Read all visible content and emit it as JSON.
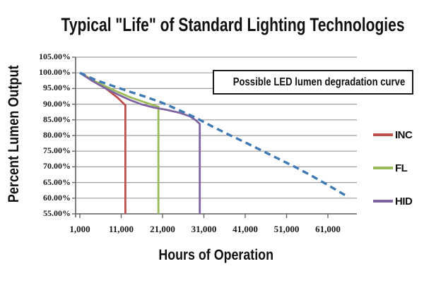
{
  "annotation": {
    "text": "Possible LED lumen degradation curve"
  },
  "legend": {
    "position": "right",
    "items": [
      {
        "label": "INC",
        "color": "#c0504d"
      },
      {
        "label": "FL",
        "color": "#9bbb59"
      },
      {
        "label": "HID",
        "color": "#8064a2"
      }
    ]
  },
  "chart_data": {
    "type": "line",
    "title": "Typical \"Life\" of Standard Lighting Technologies",
    "xlabel": "Hours of Operation",
    "ylabel": "Percent Lumen Output",
    "xlim": [
      1000,
      68000
    ],
    "ylim": [
      55,
      105
    ],
    "grid": "horizontal",
    "x_ticks": [
      1000,
      11000,
      21000,
      31000,
      41000,
      51000,
      61000
    ],
    "x_tick_labels": [
      "1,000",
      "11,000",
      "21,000",
      "31,000",
      "41,000",
      "51,000",
      "61,000"
    ],
    "y_ticks": [
      105,
      100,
      95,
      90,
      85,
      80,
      75,
      70,
      65,
      60,
      55
    ],
    "y_tick_labels": [
      "105.00%",
      "100.00%",
      "95.00%",
      "90.00%",
      "85.00%",
      "80.00%",
      "75.00%",
      "70.00%",
      "65.00%",
      "60.00%",
      "55.00%"
    ],
    "series": [
      {
        "name": "INC",
        "color": "#c0504d",
        "style": "solid",
        "points": [
          [
            1000,
            100
          ],
          [
            4000,
            97.8
          ],
          [
            7000,
            95.3
          ],
          [
            10000,
            92.2
          ],
          [
            11500,
            90.3
          ],
          [
            12000,
            89.7
          ],
          [
            12000,
            55
          ]
        ]
      },
      {
        "name": "FL",
        "color": "#9bbb59",
        "style": "solid",
        "points": [
          [
            1000,
            100
          ],
          [
            4000,
            97.7
          ],
          [
            7000,
            95.8
          ],
          [
            10000,
            94.0
          ],
          [
            13000,
            92.3
          ],
          [
            16000,
            90.9
          ],
          [
            18500,
            89.8
          ],
          [
            20000,
            89.2
          ],
          [
            20000,
            55
          ]
        ]
      },
      {
        "name": "HID",
        "color": "#8064a2",
        "style": "solid",
        "points": [
          [
            1000,
            100
          ],
          [
            4000,
            97.4
          ],
          [
            7000,
            95.2
          ],
          [
            10000,
            93.2
          ],
          [
            13000,
            91.4
          ],
          [
            16000,
            89.9
          ],
          [
            19000,
            88.9
          ],
          [
            22000,
            88.2
          ],
          [
            25000,
            87.3
          ],
          [
            27500,
            86.2
          ],
          [
            29200,
            84.7
          ],
          [
            30000,
            83.7
          ],
          [
            30000,
            55
          ]
        ]
      },
      {
        "name": "LED",
        "color": "#3f7ab5",
        "style": "dashed",
        "points": [
          [
            1000,
            100
          ],
          [
            5000,
            97.6
          ],
          [
            9000,
            95.8
          ],
          [
            13000,
            94.0
          ],
          [
            17000,
            92.3
          ],
          [
            21000,
            90.4
          ],
          [
            25000,
            88.1
          ],
          [
            29000,
            85.7
          ],
          [
            33000,
            82.9
          ],
          [
            37000,
            80.3
          ],
          [
            41000,
            77.8
          ],
          [
            45000,
            75.2
          ],
          [
            49000,
            72.6
          ],
          [
            53000,
            70.0
          ],
          [
            57000,
            67.2
          ],
          [
            61000,
            64.2
          ],
          [
            66000,
            60.3
          ]
        ]
      }
    ]
  }
}
